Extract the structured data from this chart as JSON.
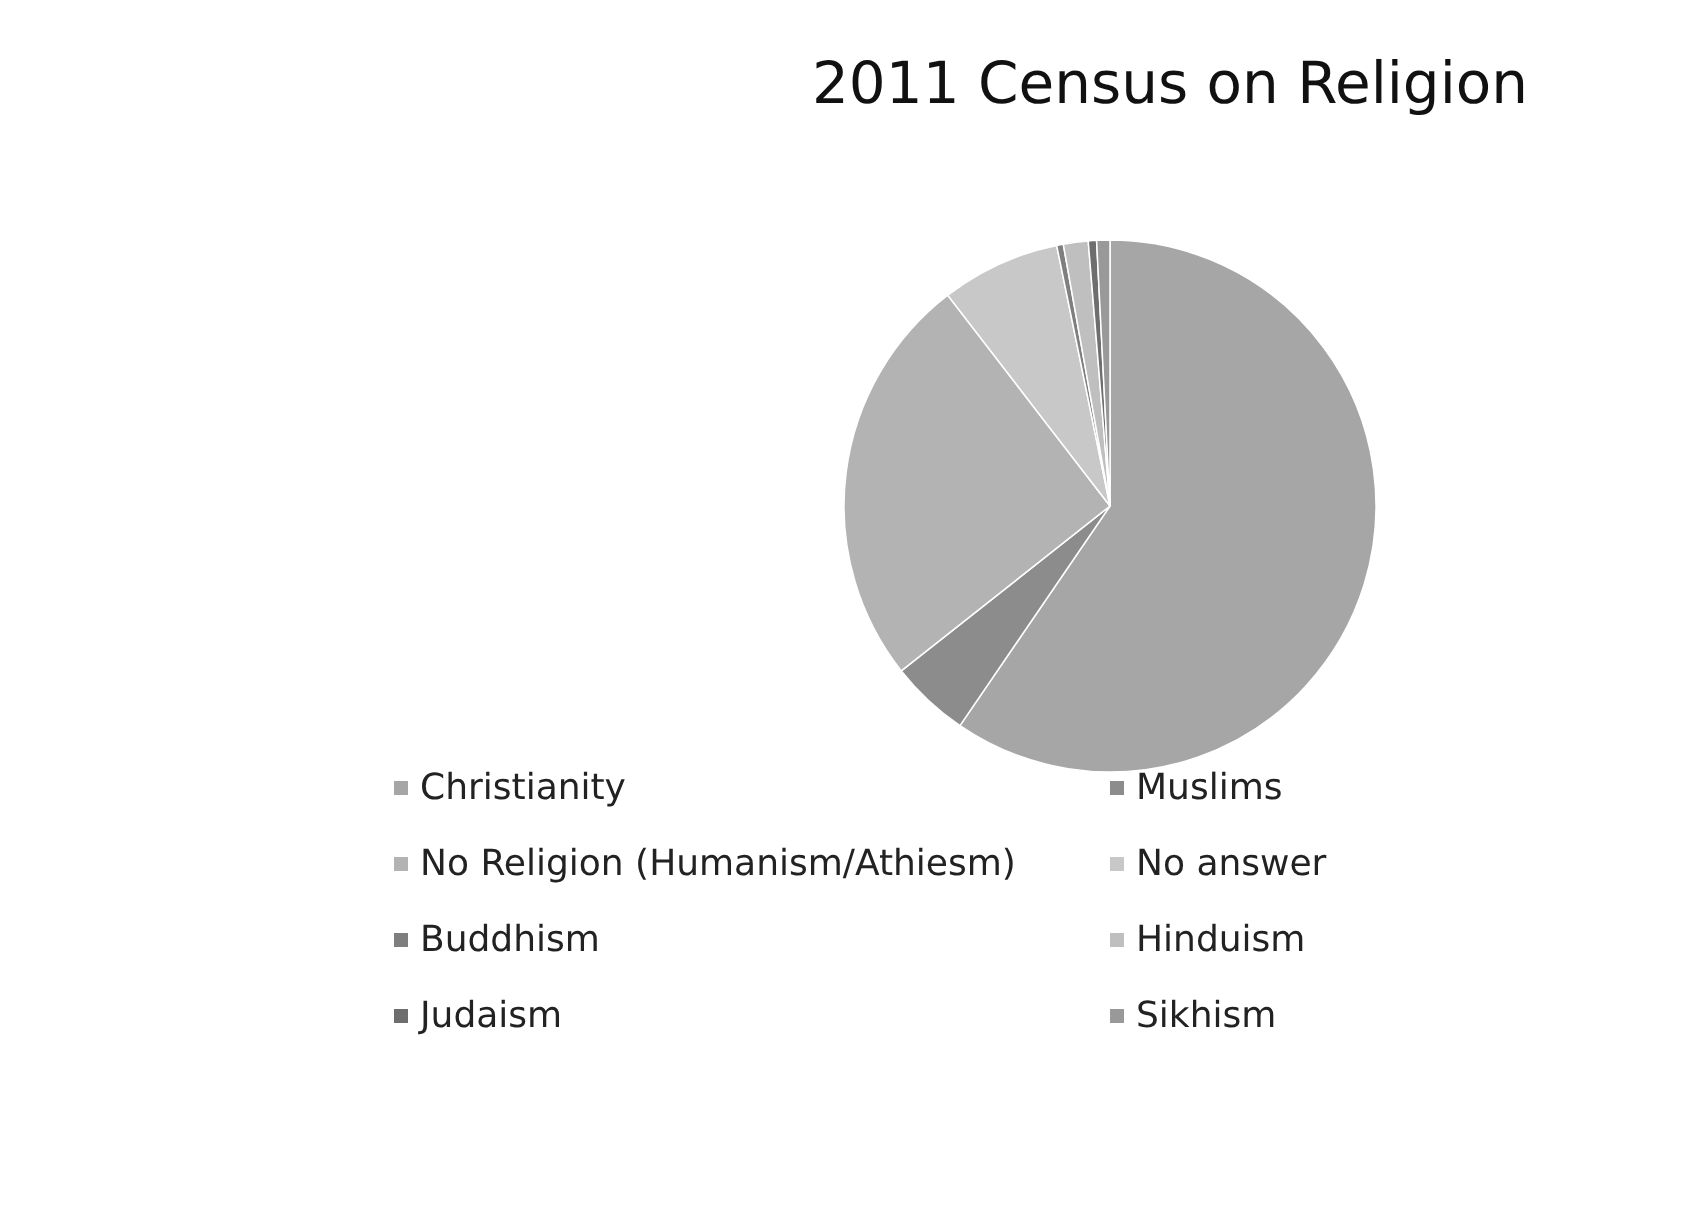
{
  "chart_data": {
    "type": "pie",
    "title": "2011 Census on Religion",
    "categories": [
      "Christianity",
      "Muslims",
      "No Religion (Humanism/Athiesm)",
      "No answer",
      "Buddhism",
      "Hinduism",
      "Judaism",
      "Sikhism"
    ],
    "values": [
      59.3,
      4.8,
      25.1,
      7.2,
      0.4,
      1.5,
      0.5,
      0.8
    ],
    "colors": [
      "#a6a6a6",
      "#8c8c8c",
      "#b3b3b3",
      "#c8c8c8",
      "#7f7f7f",
      "#bfbfbf",
      "#6e6e6e",
      "#999999"
    ],
    "legend": "bottom"
  }
}
